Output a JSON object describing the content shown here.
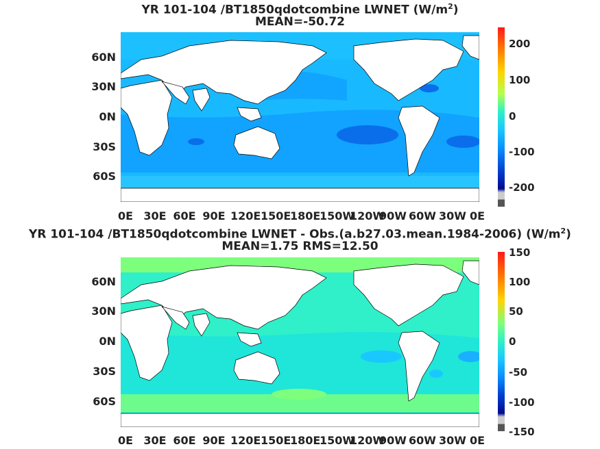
{
  "panel1": {
    "title_text": "YR 101-104 /BT1850qdotcombine  LWNET (W/m",
    "title_sup": "2",
    "title_close": ")",
    "subtitle": "MEAN=-50.72",
    "y_ticks": [
      "60N",
      "30N",
      "0N",
      "30S",
      "60S"
    ],
    "x_ticks": [
      "0E",
      "30E",
      "60E",
      "90E",
      "120E",
      "150E",
      "180E",
      "150W",
      "120W",
      "90W",
      "60W",
      "30W",
      "0E"
    ],
    "colorbar_ticks": [
      "200",
      "100",
      "0",
      "-100",
      "-200"
    ]
  },
  "panel2": {
    "title_text": "YR 101-104 /BT1850qdotcombine LWNET - Obs.(a.b27.03.mean.1984-2006) (W/m",
    "title_sup": "2",
    "title_close": ")",
    "subtitle": "MEAN=1.75 RMS=12.50",
    "y_ticks": [
      "60N",
      "30N",
      "0N",
      "30S",
      "60S"
    ],
    "x_ticks": [
      "0E",
      "30E",
      "60E",
      "90E",
      "120E",
      "150E",
      "180E",
      "150W",
      "120W",
      "90W",
      "60W",
      "30W",
      "0E"
    ],
    "colorbar_ticks": [
      "150",
      "100",
      "50",
      "0",
      "-50",
      "-100",
      "-150"
    ]
  },
  "colors": {
    "ocean_main_1": "#19b9ff",
    "ocean_deep_1": "#0a8cff",
    "ocean_main_2": "#2ff0c8",
    "ocean_high_2": "#7dff7d",
    "ocean_low_2": "#19c8ff",
    "land": "#ffffff"
  }
}
